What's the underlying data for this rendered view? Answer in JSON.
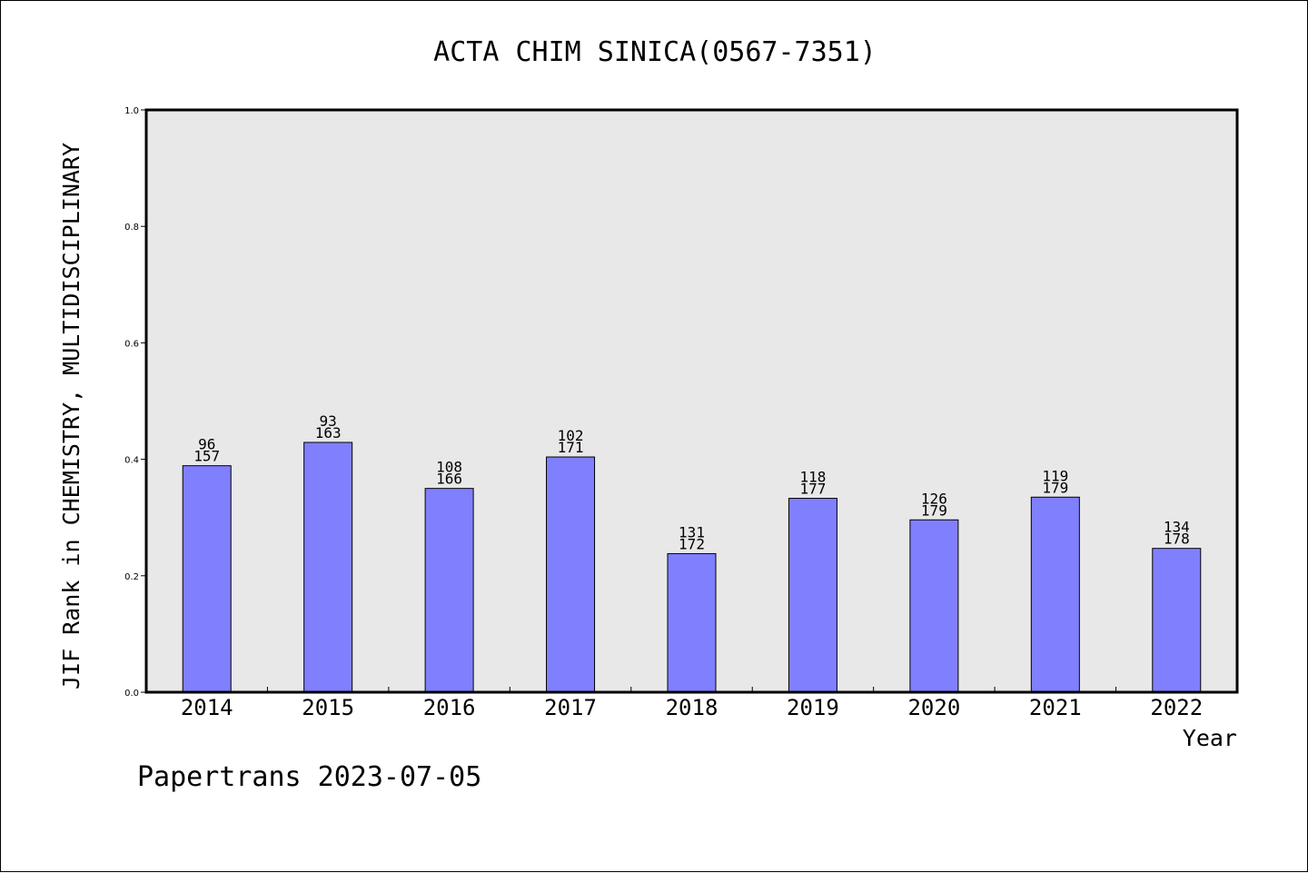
{
  "chart_data": {
    "type": "bar",
    "title": "ACTA CHIM SINICA(0567-7351)",
    "xlabel": "Year",
    "ylabel": "JIF Rank in CHEMISTRY, MULTIDISCIPLINARY",
    "categories": [
      "2014",
      "2015",
      "2016",
      "2017",
      "2018",
      "2019",
      "2020",
      "2021",
      "2022"
    ],
    "values": [
      0.389,
      0.429,
      0.35,
      0.404,
      0.238,
      0.333,
      0.296,
      0.335,
      0.247
    ],
    "labels_top": [
      "96",
      "93",
      "108",
      "102",
      "131",
      "118",
      "126",
      "119",
      "134"
    ],
    "labels_bottom": [
      "157",
      "163",
      "166",
      "171",
      "172",
      "177",
      "179",
      "179",
      "178"
    ],
    "ylim": [
      0,
      1.0
    ],
    "yticks": [
      "0.0",
      "0.2",
      "0.4",
      "0.6",
      "0.8",
      "1.0"
    ],
    "bar_color": "#8080ff",
    "plot_background": "#e8e8e8",
    "grid": false
  },
  "footer": "Papertrans 2023-07-05"
}
